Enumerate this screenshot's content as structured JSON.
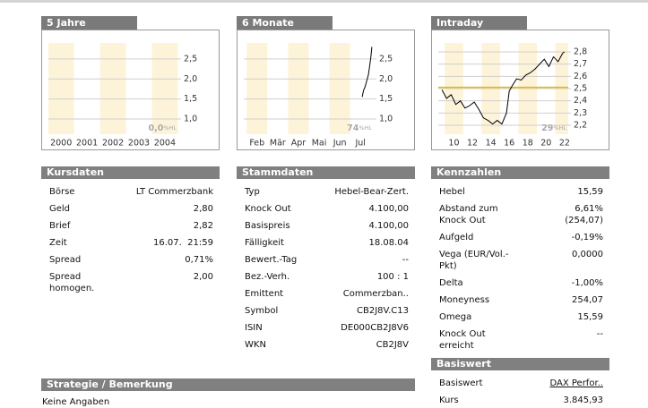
{
  "charts": [
    {
      "title": "5 Jahre",
      "xlim": [
        1999.51,
        2004.52
      ],
      "xticks": [
        {
          "value": 2000,
          "label": "2000"
        },
        {
          "value": 2001,
          "label": "2001"
        },
        {
          "value": 2002,
          "label": "2002"
        },
        {
          "value": 2003,
          "label": "2003"
        },
        {
          "value": 2004,
          "label": "2004"
        }
      ],
      "ylim": [
        0.62,
        2.9
      ],
      "yticks": [
        {
          "value": 2.5,
          "label": "2,5"
        },
        {
          "value": 2,
          "label": "2,0"
        },
        {
          "value": 1.5,
          "label": "1,5"
        },
        {
          "value": 1,
          "label": "1,0"
        }
      ],
      "badge": "0,0",
      "badge_unit": "%HL"
    },
    {
      "title": "6 Monate",
      "xlim": [
        1.36,
        7.64
      ],
      "xticks": [
        {
          "value": 2,
          "label": "Feb"
        },
        {
          "value": 3,
          "label": "Mär"
        },
        {
          "value": 4,
          "label": "Apr"
        },
        {
          "value": 5,
          "label": "Mai"
        },
        {
          "value": 6,
          "label": "Jun"
        },
        {
          "value": 7,
          "label": "Jul"
        }
      ],
      "ylim": [
        0.62,
        2.9
      ],
      "yticks": [
        {
          "value": 2.5,
          "label": "2,5"
        },
        {
          "value": 2,
          "label": "2,0"
        },
        {
          "value": 1.5,
          "label": "1,5"
        },
        {
          "value": 1,
          "label": "1,0"
        }
      ],
      "x": [
        7.08,
        7.15,
        7.22,
        7.3,
        7.38,
        7.45,
        7.5,
        7.55
      ],
      "values": [
        1.55,
        1.72,
        1.8,
        1.95,
        2.1,
        2.35,
        2.55,
        2.8
      ],
      "color": "#000000",
      "badge": "74",
      "badge_unit": "%HL"
    },
    {
      "title": "Intraday",
      "xlim": [
        8.3,
        22.4
      ],
      "xticks": [
        10,
        12,
        14,
        16,
        18,
        20,
        22
      ],
      "ylim": [
        2.127,
        2.873
      ],
      "yticks": [
        {
          "value": 2.8,
          "label": "2,8"
        },
        {
          "value": 2.7,
          "label": "2,7"
        },
        {
          "value": 2.6,
          "label": "2,6"
        },
        {
          "value": 2.5,
          "label": "2,5"
        },
        {
          "value": 2.4,
          "label": "2,4"
        },
        {
          "value": 2.3,
          "label": "2,3"
        },
        {
          "value": 2.2,
          "label": "2,2"
        }
      ],
      "x": [
        8.7,
        9.2,
        9.7,
        10.2,
        10.7,
        11.2,
        11.7,
        12.2,
        12.7,
        13.2,
        13.7,
        14.2,
        14.7,
        15.2,
        15.7,
        16.0,
        16.3,
        16.8,
        17.3,
        17.8,
        18.3,
        18.8,
        19.3,
        19.8,
        20.3,
        20.8,
        21.3,
        21.8,
        22.0
      ],
      "values": [
        2.49,
        2.42,
        2.45,
        2.37,
        2.4,
        2.34,
        2.36,
        2.39,
        2.33,
        2.26,
        2.24,
        2.21,
        2.24,
        2.21,
        2.3,
        2.48,
        2.52,
        2.58,
        2.57,
        2.61,
        2.63,
        2.66,
        2.7,
        2.74,
        2.68,
        2.76,
        2.72,
        2.79,
        2.8
      ],
      "color": "#000000",
      "reference": 2.51,
      "reference_color": "#e8b800",
      "badge": "29",
      "badge_unit": "%HL"
    }
  ],
  "tables": [
    {
      "title": "Kursdaten",
      "rows": [
        [
          "Börse",
          "LT Commerzbank"
        ],
        [
          "Geld",
          "2,80"
        ],
        [
          "Brief",
          "2,82"
        ],
        [
          "Zeit",
          "16.07.  21:59"
        ],
        [
          "Spread",
          "0,71%"
        ],
        [
          "Spread homogen.",
          "2,00"
        ]
      ]
    },
    {
      "title": "Stammdaten",
      "rows": [
        [
          "Typ",
          "Hebel-Bear-Zert."
        ],
        [
          "Knock Out",
          "4.100,00"
        ],
        [
          "Basispreis",
          "4.100,00"
        ],
        [
          "Fälligkeit",
          "18.08.04"
        ],
        [
          "Bewert.-Tag",
          "--"
        ],
        [
          "Bez.-Verh.",
          "100 : 1"
        ],
        [
          "Emittent",
          "Commerzban.."
        ],
        [
          "Symbol",
          "CB2J8V.C13"
        ],
        [
          "ISIN",
          "DE000CB2J8V6"
        ],
        [
          "WKN",
          "CB2J8V"
        ]
      ]
    },
    {
      "title": "Kennzahlen",
      "rows": [
        [
          "Hebel",
          "15,59"
        ],
        [
          "Abstand zum Knock Out",
          "6,61% (254,07)"
        ],
        [
          "Aufgeld",
          "-0,19%"
        ],
        [
          "Vega (EUR/Vol.-Pkt)",
          "0,0000"
        ],
        [
          "Delta",
          "-1,00%"
        ],
        [
          "Moneyness",
          "254,07"
        ],
        [
          "Omega",
          "15,59"
        ],
        [
          "Knock Out erreicht",
          "--"
        ]
      ]
    },
    {
      "title": "Basiswert",
      "rows": [
        [
          "Basiswert",
          "DAX Perfor.."
        ],
        [
          "Kurs",
          "3.845,93"
        ]
      ]
    }
  ],
  "strategy": {
    "title": "Strategie / Bemerkung",
    "text": "Keine Angaben"
  }
}
